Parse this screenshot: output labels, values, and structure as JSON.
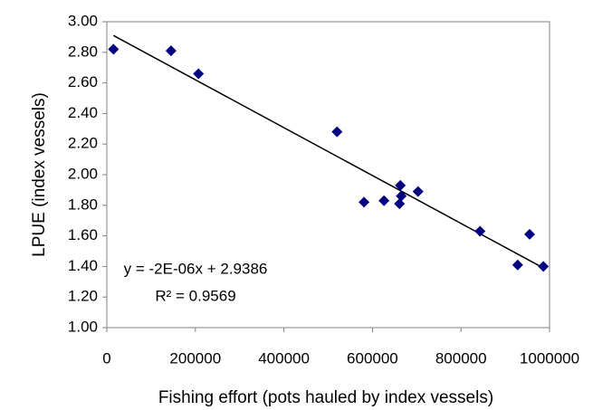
{
  "chart_data": {
    "type": "scatter",
    "xlabel": "Fishing effort (pots hauled by index vessels)",
    "ylabel": "LPUE (index vessels)",
    "x": [
      15000,
      145000,
      207000,
      520000,
      581000,
      626000,
      663000,
      665000,
      661000,
      703000,
      843000,
      955000,
      928000,
      986000
    ],
    "series": [
      {
        "color": "#000080",
        "values": [
          2.82,
          2.81,
          2.66,
          2.28,
          1.82,
          1.83,
          1.93,
          1.86,
          1.81,
          1.89,
          1.63,
          1.61,
          1.41,
          1.4
        ]
      }
    ],
    "trendline": {
      "x": [
        15000,
        986000
      ],
      "y": [
        2.91,
        1.39
      ],
      "color": "#000000"
    },
    "annotations": [
      "y = -2E-06x + 2.9386",
      "R² = 0.9569"
    ],
    "xlim": [
      0,
      1000000
    ],
    "xticks": [
      0,
      200000,
      400000,
      600000,
      800000,
      1000000
    ],
    "ylim": [
      1,
      3
    ],
    "yticks": [
      {
        "value": 1,
        "label": "1.00"
      },
      {
        "value": 1.2,
        "label": "1.20"
      },
      {
        "value": 1.4,
        "label": "1.40"
      },
      {
        "value": 1.6,
        "label": "1.60"
      },
      {
        "value": 1.8,
        "label": "1.80"
      },
      {
        "value": 2,
        "label": "2.00"
      },
      {
        "value": 2.2,
        "label": "2.20"
      },
      {
        "value": 2.4,
        "label": "2.40"
      },
      {
        "value": 2.6,
        "label": "2.60"
      },
      {
        "value": 2.8,
        "label": "2.80"
      },
      {
        "value": 3,
        "label": "3.00"
      }
    ],
    "grid": false
  }
}
